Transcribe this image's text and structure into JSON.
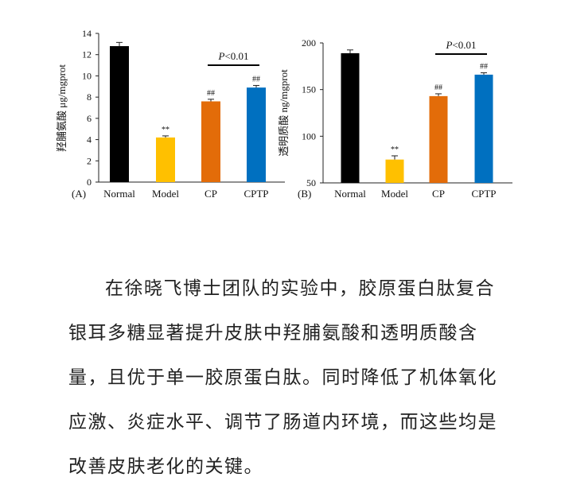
{
  "chart_data": [
    {
      "type": "bar",
      "panel_label": "(A)",
      "categories": [
        "Normal",
        "Model",
        "CP",
        "CPTP"
      ],
      "values": [
        12.8,
        4.2,
        7.6,
        8.9
      ],
      "errors": [
        0.35,
        0.15,
        0.2,
        0.2
      ],
      "colors": [
        "#000000",
        "#FFC000",
        "#E36C09",
        "#0070C0"
      ],
      "sig_labels": [
        "",
        "**",
        "##",
        "##"
      ],
      "ylabel": "羟脯氨酸 μg/mgprot",
      "ylim": [
        0,
        14
      ],
      "yticks": [
        0,
        2,
        4,
        6,
        8,
        10,
        12,
        14
      ],
      "comparison": {
        "from": "CP",
        "to": "CPTP",
        "label": "P<0.01"
      }
    },
    {
      "type": "bar",
      "panel_label": "(B)",
      "categories": [
        "Normal",
        "Model",
        "CP",
        "CPTP"
      ],
      "values": [
        189,
        75,
        143,
        166
      ],
      "errors": [
        3.5,
        4,
        2.5,
        2
      ],
      "colors": [
        "#000000",
        "#FFC000",
        "#E36C09",
        "#0070C0"
      ],
      "sig_labels": [
        "",
        "**",
        "##",
        "##"
      ],
      "ylabel": "透明质酸 ng/mgprot",
      "ylim": [
        50,
        200
      ],
      "yticks": [
        50,
        100,
        150,
        200
      ],
      "comparison": {
        "from": "CP",
        "to": "CPTP",
        "label": "P<0.01"
      }
    }
  ],
  "article": {
    "paragraph": "在徐晓飞博士团队的实验中，胶原蛋白肽复合银耳多糖显著提升皮肤中羟脯氨酸和透明质酸含量，且优于单一胶原蛋白肽。同时降低了机体氧化应激、炎症水平、调节了肠道内环境，而这些均是改善皮肤老化的关键。"
  }
}
